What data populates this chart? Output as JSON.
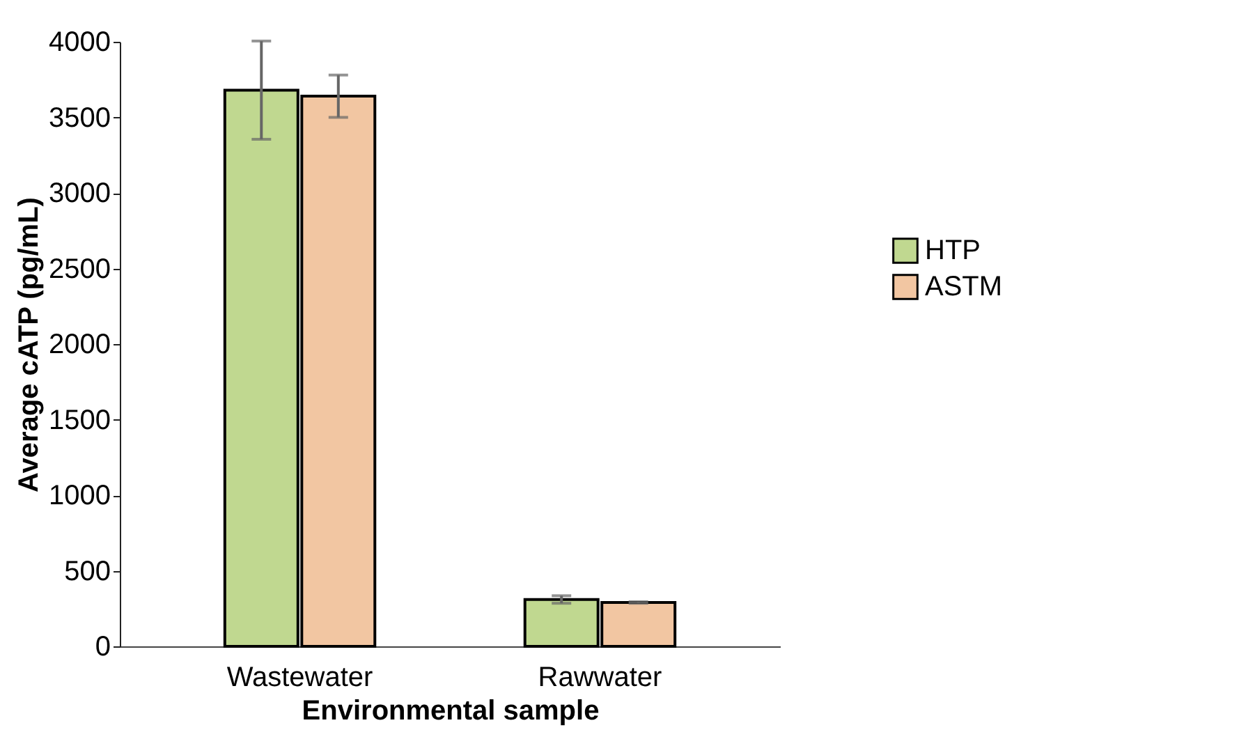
{
  "chart_data": {
    "type": "bar",
    "xlabel": "Environmental sample",
    "ylabel": "Average cATP (pg/mL)",
    "categories": [
      "Wastewater",
      "Rawwater"
    ],
    "series": [
      {
        "name": "HTP",
        "color": "#c0d890",
        "values": [
          3680,
          310
        ],
        "errors": [
          325,
          25
        ]
      },
      {
        "name": "ASTM",
        "color": "#f2c6a2",
        "values": [
          3640,
          290
        ],
        "errors": [
          140,
          5
        ]
      }
    ],
    "ylim": [
      0,
      4000
    ],
    "yticks": [
      0,
      500,
      1000,
      1500,
      2000,
      2500,
      3000,
      3500,
      4000
    ],
    "grid": false,
    "legend": "right"
  }
}
